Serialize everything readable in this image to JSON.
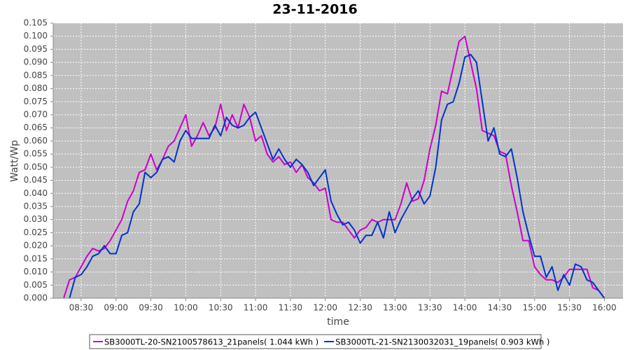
{
  "chart_data": {
    "type": "line",
    "title": "23-11-2016",
    "x_label": "time",
    "y_label": "Watt/Wp",
    "x": [
      "08:15",
      "08:20",
      "08:25",
      "08:30",
      "08:35",
      "08:40",
      "08:45",
      "08:50",
      "08:55",
      "09:00",
      "09:05",
      "09:10",
      "09:15",
      "09:20",
      "09:25",
      "09:30",
      "09:35",
      "09:40",
      "09:45",
      "09:50",
      "09:55",
      "10:00",
      "10:05",
      "10:10",
      "10:15",
      "10:20",
      "10:25",
      "10:30",
      "10:35",
      "10:40",
      "10:45",
      "10:50",
      "10:55",
      "11:00",
      "11:05",
      "11:10",
      "11:15",
      "11:20",
      "11:25",
      "11:30",
      "11:35",
      "11:40",
      "11:45",
      "11:50",
      "11:55",
      "12:00",
      "12:05",
      "12:10",
      "12:15",
      "12:20",
      "12:25",
      "12:30",
      "12:35",
      "12:40",
      "12:45",
      "12:50",
      "12:55",
      "13:00",
      "13:05",
      "13:10",
      "13:15",
      "13:20",
      "13:25",
      "13:30",
      "13:35",
      "13:40",
      "13:45",
      "13:50",
      "13:55",
      "14:00",
      "14:05",
      "14:10",
      "14:15",
      "14:20",
      "14:25",
      "14:30",
      "14:35",
      "14:40",
      "14:45",
      "14:50",
      "14:55",
      "15:00",
      "15:05",
      "15:10",
      "15:15",
      "15:20",
      "15:25",
      "15:30",
      "15:35",
      "15:40",
      "15:45",
      "15:50",
      "15:55",
      "16:00"
    ],
    "series": [
      {
        "name": "SB3000TL-20-SN2100578613_21panels( 1.044 kWh )",
        "color": "#cc00cc",
        "values": [
          0.0,
          0.007,
          0.008,
          0.012,
          0.016,
          0.019,
          0.018,
          0.019,
          0.022,
          0.026,
          0.03,
          0.037,
          0.041,
          0.048,
          0.049,
          0.055,
          0.049,
          0.053,
          0.058,
          0.06,
          0.065,
          0.07,
          0.058,
          0.062,
          0.067,
          0.062,
          0.065,
          0.074,
          0.064,
          0.07,
          0.065,
          0.074,
          0.069,
          0.06,
          0.062,
          0.055,
          0.052,
          0.054,
          0.051,
          0.052,
          0.048,
          0.051,
          0.046,
          0.044,
          0.041,
          0.042,
          0.03,
          0.029,
          0.029,
          0.026,
          0.023,
          0.026,
          0.027,
          0.03,
          0.029,
          0.03,
          0.03,
          0.03,
          0.036,
          0.044,
          0.037,
          0.038,
          0.045,
          0.057,
          0.066,
          0.079,
          0.078,
          0.088,
          0.098,
          0.1,
          0.09,
          0.08,
          0.064,
          0.063,
          0.062,
          0.056,
          0.055,
          0.043,
          0.033,
          0.022,
          0.022,
          0.012,
          0.009,
          0.007,
          0.007,
          0.006,
          0.008,
          0.011,
          0.011,
          0.011,
          0.011,
          0.004,
          0.003,
          0.0
        ]
      },
      {
        "name": "SB3000TL-21-SN2130032031_19panels( 0.903 kWh )",
        "color": "#0033cc",
        "values": [
          null,
          0.0,
          0.008,
          0.009,
          0.012,
          0.016,
          0.017,
          0.02,
          0.017,
          0.017,
          0.024,
          0.025,
          0.033,
          0.036,
          0.048,
          0.046,
          0.048,
          0.053,
          0.054,
          0.052,
          0.06,
          0.064,
          0.061,
          0.061,
          0.061,
          0.061,
          0.066,
          0.062,
          0.069,
          0.066,
          0.065,
          0.066,
          0.069,
          0.071,
          0.065,
          0.059,
          0.053,
          0.057,
          0.053,
          0.05,
          0.053,
          0.051,
          0.048,
          0.043,
          0.046,
          0.049,
          0.037,
          0.032,
          0.028,
          0.029,
          0.026,
          0.021,
          0.024,
          0.024,
          0.029,
          0.023,
          0.033,
          0.025,
          0.03,
          0.034,
          0.038,
          0.041,
          0.036,
          0.039,
          0.05,
          0.068,
          0.074,
          0.075,
          0.082,
          0.092,
          0.093,
          0.09,
          0.075,
          0.06,
          0.065,
          0.055,
          0.054,
          0.057,
          0.046,
          0.033,
          0.024,
          0.016,
          0.016,
          0.008,
          0.012,
          0.003,
          0.009,
          0.005,
          0.013,
          0.012,
          0.007,
          0.006,
          0.003,
          0.0
        ]
      }
    ],
    "xlim": [
      "08:06",
      "16:16"
    ],
    "xticks": [
      "08:30",
      "09:00",
      "09:30",
      "10:00",
      "10:30",
      "11:00",
      "11:30",
      "12:00",
      "12:30",
      "13:00",
      "13:30",
      "14:00",
      "14:30",
      "15:00",
      "15:30",
      "16:00"
    ],
    "ylim": [
      0,
      0.105
    ],
    "yticks": [
      {
        "value": 0,
        "label": "0.000"
      },
      {
        "value": 0.005,
        "label": "0.005"
      },
      {
        "value": 0.01,
        "label": "0.010"
      },
      {
        "value": 0.015,
        "label": "0.015"
      },
      {
        "value": 0.02,
        "label": "0.020"
      },
      {
        "value": 0.025,
        "label": "0.025"
      },
      {
        "value": 0.03,
        "label": "0.030"
      },
      {
        "value": 0.035,
        "label": "0.035"
      },
      {
        "value": 0.04,
        "label": "0.040"
      },
      {
        "value": 0.045,
        "label": "0.045"
      },
      {
        "value": 0.05,
        "label": "0.050"
      },
      {
        "value": 0.055,
        "label": "0.055"
      },
      {
        "value": 0.06,
        "label": "0.060"
      },
      {
        "value": 0.065,
        "label": "0.065"
      },
      {
        "value": 0.07,
        "label": "0.070"
      },
      {
        "value": 0.075,
        "label": "0.075"
      },
      {
        "value": 0.08,
        "label": "0.080"
      },
      {
        "value": 0.085,
        "label": "0.085"
      },
      {
        "value": 0.09,
        "label": "0.090"
      },
      {
        "value": 0.095,
        "label": "0.095"
      },
      {
        "value": 0.1,
        "label": "0.100"
      },
      {
        "value": 0.105,
        "label": "0.105"
      }
    ],
    "grid": true,
    "legend": "bottom"
  }
}
